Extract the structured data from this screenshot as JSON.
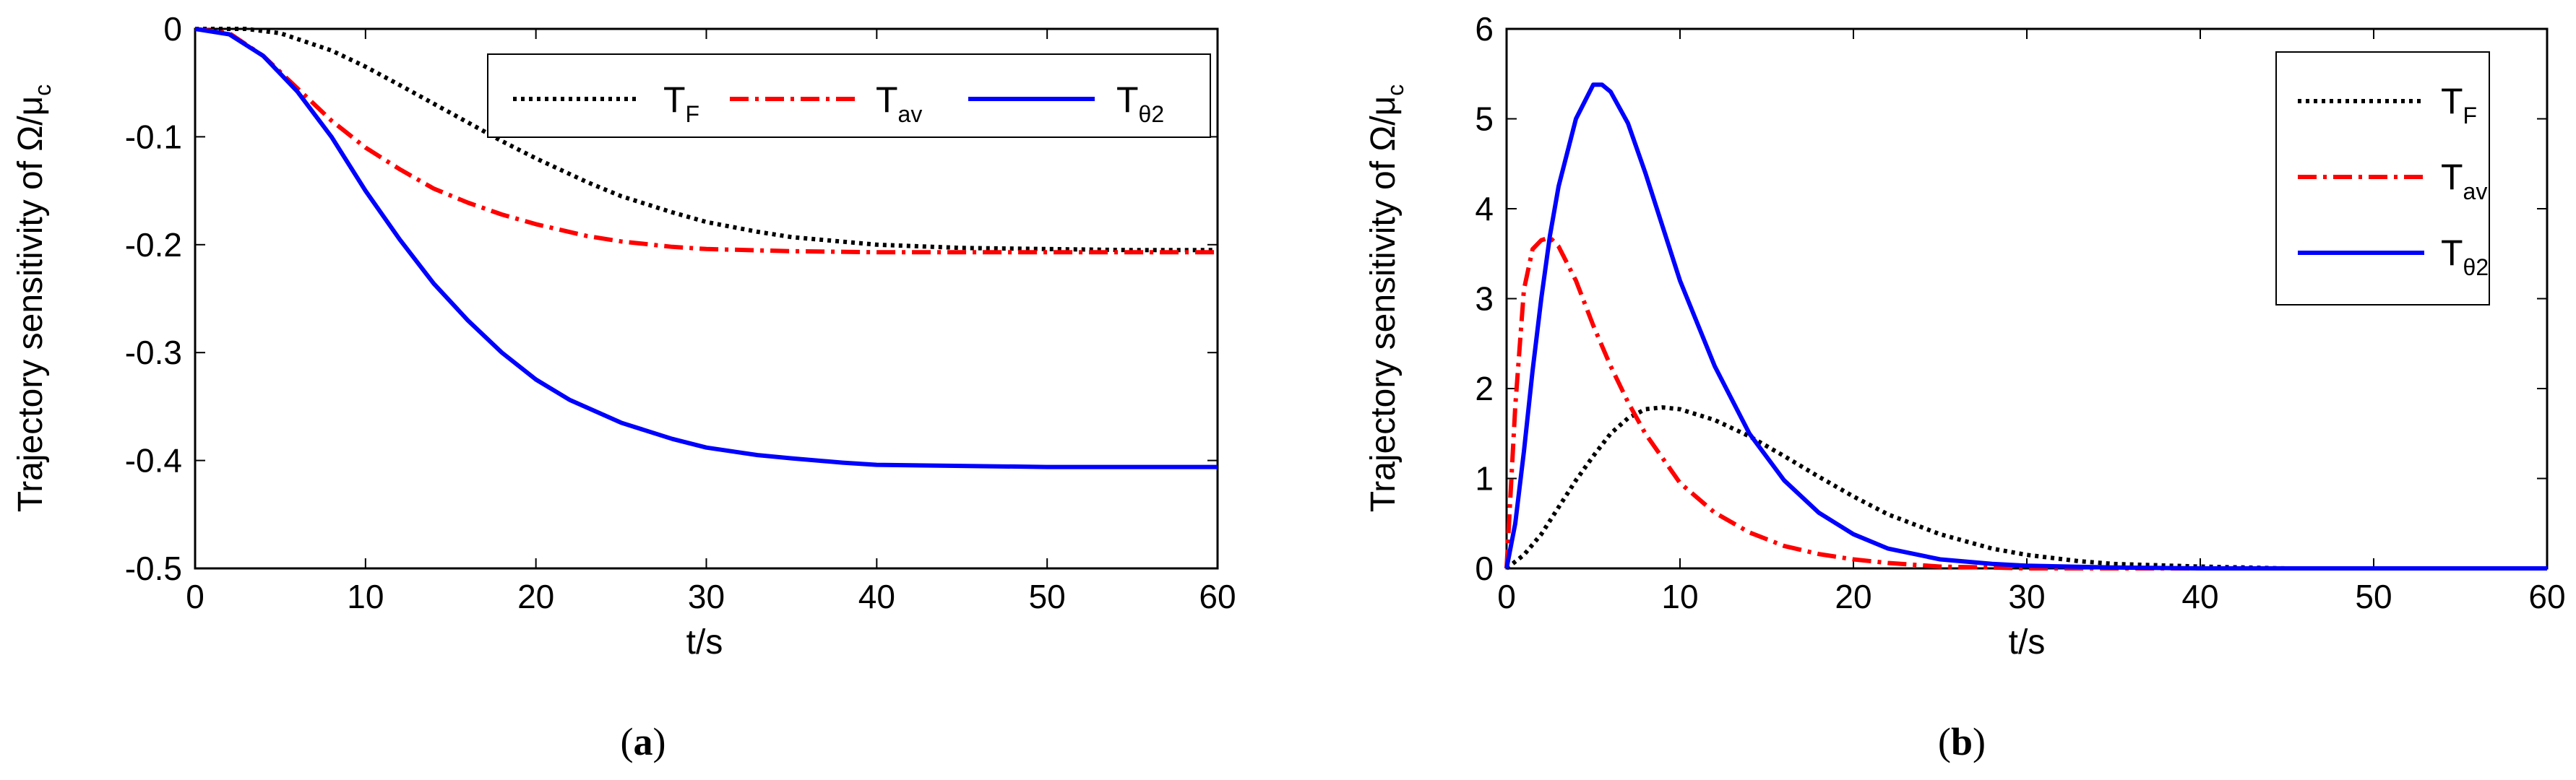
{
  "chart_data": [
    {
      "type": "line",
      "panel_label": "a",
      "xlabel": "t/s",
      "ylabel": "Trajectory sensitivity of Ω/μ",
      "ylabel_sub": "c",
      "xlim": [
        0,
        60
      ],
      "ylim": [
        -0.5,
        0
      ],
      "xticks": [
        0,
        10,
        20,
        30,
        40,
        50,
        60
      ],
      "xtick_labels": [
        "0",
        "10",
        "20",
        "30",
        "40",
        "50",
        "60"
      ],
      "yticks": [
        -0.5,
        -0.4,
        -0.3,
        -0.2,
        -0.1,
        0
      ],
      "ytick_labels": [
        "-0.5",
        "-0.4",
        "-0.3",
        "-0.2",
        "-0.1",
        "0"
      ],
      "legend_position": "top-right, horizontal",
      "series": [
        {
          "name": "T",
          "sub": "F",
          "color": "#000000",
          "style": "dotted",
          "x": [
            0,
            3,
            5,
            8,
            10,
            12,
            15,
            18,
            20,
            23,
            25,
            28,
            30,
            33,
            35,
            40,
            45,
            50,
            55,
            60
          ],
          "y": [
            0,
            0,
            -0.004,
            -0.02,
            -0.035,
            -0.052,
            -0.078,
            -0.104,
            -0.12,
            -0.142,
            -0.155,
            -0.17,
            -0.179,
            -0.188,
            -0.193,
            -0.2,
            -0.203,
            -0.204,
            -0.205,
            -0.205
          ]
        },
        {
          "name": "T",
          "sub": "av",
          "color": "#ff0000",
          "style": "dash-dot",
          "x": [
            0,
            2,
            4,
            6,
            8,
            10,
            12,
            14,
            16,
            18,
            20,
            23,
            25,
            28,
            30,
            35,
            40,
            50,
            60
          ],
          "y": [
            0,
            -0.004,
            -0.025,
            -0.055,
            -0.085,
            -0.11,
            -0.13,
            -0.148,
            -0.161,
            -0.172,
            -0.181,
            -0.192,
            -0.197,
            -0.202,
            -0.204,
            -0.206,
            -0.207,
            -0.207,
            -0.207
          ]
        },
        {
          "name": "T",
          "sub": "θ2",
          "color": "#0000ff",
          "style": "solid",
          "x": [
            0,
            2,
            4,
            6,
            8,
            10,
            12,
            14,
            16,
            18,
            20,
            22,
            25,
            28,
            30,
            33,
            35,
            38,
            40,
            45,
            50,
            60
          ],
          "y": [
            0,
            -0.005,
            -0.025,
            -0.058,
            -0.1,
            -0.15,
            -0.195,
            -0.236,
            -0.27,
            -0.3,
            -0.325,
            -0.344,
            -0.365,
            -0.38,
            -0.388,
            -0.395,
            -0.398,
            -0.402,
            -0.404,
            -0.405,
            -0.406,
            -0.406
          ]
        }
      ]
    },
    {
      "type": "line",
      "panel_label": "b",
      "xlabel": "t/s",
      "ylabel": "Trajectory sensitivity of Ω/μ",
      "ylabel_sub": "c",
      "xlim": [
        0,
        60
      ],
      "ylim": [
        0,
        6
      ],
      "xticks": [
        0,
        10,
        20,
        30,
        40,
        50,
        60
      ],
      "xtick_labels": [
        "0",
        "10",
        "20",
        "30",
        "40",
        "50",
        "60"
      ],
      "yticks": [
        0,
        1,
        2,
        3,
        4,
        5,
        6
      ],
      "ytick_labels": [
        "0",
        "1",
        "2",
        "3",
        "4",
        "5",
        "6"
      ],
      "legend_position": "top-right, vertical",
      "series": [
        {
          "name": "T",
          "sub": "F",
          "color": "#000000",
          "style": "dotted",
          "x": [
            0,
            1,
            2,
            3,
            4,
            5,
            6,
            7,
            8,
            9,
            10,
            12,
            14,
            16,
            18,
            20,
            22,
            25,
            28,
            30,
            33,
            35,
            40,
            45,
            50,
            60
          ],
          "y": [
            0,
            0.15,
            0.38,
            0.68,
            0.98,
            1.25,
            1.5,
            1.67,
            1.77,
            1.79,
            1.77,
            1.65,
            1.47,
            1.25,
            1.02,
            0.8,
            0.6,
            0.38,
            0.22,
            0.15,
            0.08,
            0.05,
            0.02,
            0,
            0,
            0
          ]
        },
        {
          "name": "T",
          "sub": "av",
          "color": "#ff0000",
          "style": "dash-dot",
          "x": [
            0,
            0.5,
            1,
            1.5,
            2,
            2.5,
            3,
            4,
            5,
            6,
            7,
            8,
            10,
            12,
            14,
            16,
            18,
            20,
            22,
            25,
            28,
            30,
            40,
            60
          ],
          "y": [
            0,
            1.8,
            3.1,
            3.55,
            3.65,
            3.68,
            3.58,
            3.2,
            2.7,
            2.25,
            1.85,
            1.5,
            0.95,
            0.62,
            0.4,
            0.25,
            0.16,
            0.1,
            0.06,
            0.02,
            0.01,
            0,
            0,
            0
          ]
        },
        {
          "name": "T",
          "sub": "θ2",
          "color": "#0000ff",
          "style": "solid",
          "x": [
            0,
            0.5,
            1,
            1.5,
            2,
            2.5,
            3,
            4,
            5,
            5.5,
            6,
            7,
            8,
            9,
            10,
            12,
            14,
            16,
            18,
            20,
            22,
            25,
            28,
            30,
            35,
            40,
            60
          ],
          "y": [
            0,
            0.5,
            1.3,
            2.2,
            3.0,
            3.7,
            4.25,
            5.0,
            5.38,
            5.38,
            5.3,
            4.95,
            4.4,
            3.8,
            3.2,
            2.25,
            1.5,
            0.98,
            0.62,
            0.38,
            0.22,
            0.1,
            0.05,
            0.03,
            0.01,
            0,
            0
          ]
        }
      ]
    }
  ]
}
